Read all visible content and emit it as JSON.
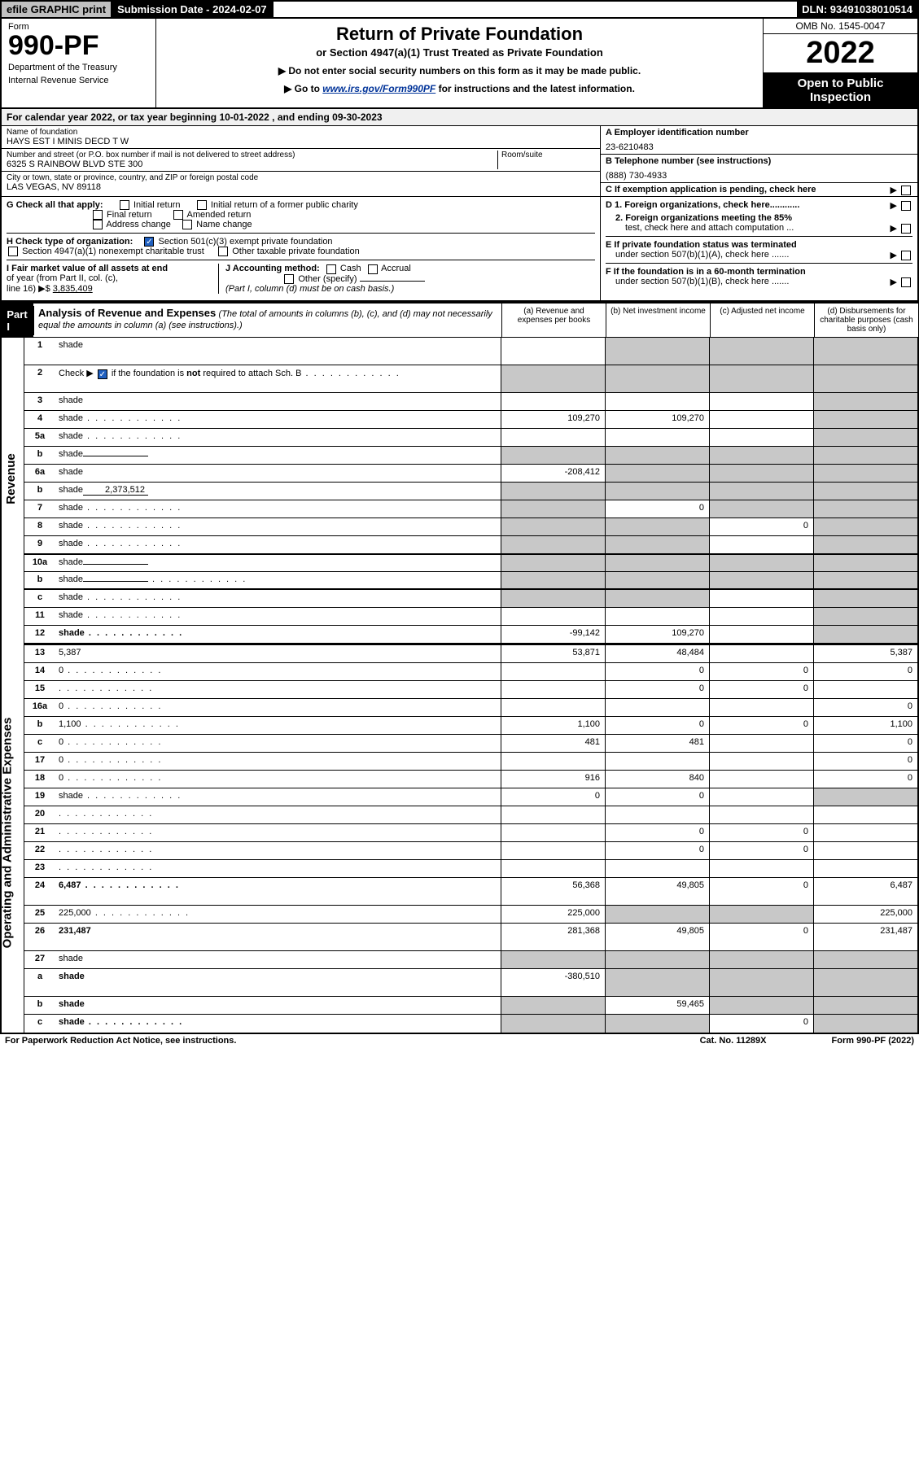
{
  "topbar": {
    "efile": "efile GRAPHIC print",
    "submission": "Submission Date - 2024-02-07",
    "dln": "DLN: 93491038010514"
  },
  "header": {
    "form_label": "Form",
    "form_number": "990-PF",
    "dept1": "Department of the Treasury",
    "dept2": "Internal Revenue Service",
    "title": "Return of Private Foundation",
    "subtitle": "or Section 4947(a)(1) Trust Treated as Private Foundation",
    "note1": "▶ Do not enter social security numbers on this form as it may be made public.",
    "note2_pre": "▶ Go to ",
    "note2_link": "www.irs.gov/Form990PF",
    "note2_post": " for instructions and the latest information.",
    "omb": "OMB No. 1545-0047",
    "year": "2022",
    "open_pub1": "Open to Public",
    "open_pub2": "Inspection"
  },
  "cal_year": "For calendar year 2022, or tax year beginning 10-01-2022                          , and ending 09-30-2023",
  "info": {
    "name_lbl": "Name of foundation",
    "name_val": "HAYS EST I MINIS DECD T W",
    "addr_lbl": "Number and street (or P.O. box number if mail is not delivered to street address)",
    "addr_val": "6325 S RAINBOW BLVD STE 300",
    "room_lbl": "Room/suite",
    "city_lbl": "City or town, state or province, country, and ZIP or foreign postal code",
    "city_val": "LAS VEGAS, NV  89118",
    "ein_lbl": "A Employer identification number",
    "ein_val": "23-6210483",
    "phone_lbl": "B Telephone number (see instructions)",
    "phone_val": "(888) 730-4933",
    "c_lbl": "C If exemption application is pending, check here",
    "d1": "D 1. Foreign organizations, check here............",
    "d2a": "2. Foreign organizations meeting the 85%",
    "d2b": "test, check here and attach computation ...",
    "e1": "E If private foundation status was terminated",
    "e2": "under section 507(b)(1)(A), check here .......",
    "f1": "F  If the foundation is in a 60-month termination",
    "f2": "under section 507(b)(1)(B), check here .......",
    "g_lbl": "G Check all that apply:",
    "g_initial": "Initial return",
    "g_initial_fp": "Initial return of a former public charity",
    "g_final": "Final return",
    "g_amended": "Amended return",
    "g_address": "Address change",
    "g_name": "Name change",
    "h_lbl": "H Check type of organization:",
    "h_501": "Section 501(c)(3) exempt private foundation",
    "h_4947": "Section 4947(a)(1) nonexempt charitable trust",
    "h_other": "Other taxable private foundation",
    "i_lbl1": "I Fair market value of all assets at end",
    "i_lbl2": "of year (from Part II, col. (c),",
    "i_lbl3": "line 16) ▶$",
    "i_val": "3,835,409",
    "j_lbl": "J Accounting method:",
    "j_cash": "Cash",
    "j_accrual": "Accrual",
    "j_other": "Other (specify)",
    "j_note": "(Part I, column (d) must be on cash basis.)"
  },
  "part1": {
    "label": "Part I",
    "title": "Analysis of Revenue and Expenses",
    "title_note": " (The total of amounts in columns (b), (c), and (d) may not necessarily equal the amounts in column (a) (see instructions).)",
    "col_a": "(a)   Revenue and expenses per books",
    "col_b": "(b)   Net investment income",
    "col_c": "(c)   Adjusted net income",
    "col_d": "(d)   Disbursements for charitable purposes (cash basis only)"
  },
  "side_labels": {
    "revenue": "Revenue",
    "expenses": "Operating and Administrative Expenses"
  },
  "rows": [
    {
      "n": "1",
      "d": "shade",
      "a": "",
      "b": "shade",
      "c": "shade",
      "tall": true
    },
    {
      "n": "2",
      "d_html": "Check ▶ <span class='chk on'></span> if the foundation is <b>not</b> required to attach Sch. B",
      "a": "shade",
      "b": "shade",
      "c": "shade",
      "d": "shade",
      "tall": true,
      "dots": true
    },
    {
      "n": "3",
      "d": "shade",
      "a": "",
      "b": "",
      "c": ""
    },
    {
      "n": "4",
      "d": "shade",
      "a": "109,270",
      "b": "109,270",
      "c": "",
      "dots": true
    },
    {
      "n": "5a",
      "d": "shade",
      "a": "",
      "b": "",
      "c": "",
      "dots": true
    },
    {
      "n": "b",
      "d": "shade",
      "a": "shade",
      "b": "shade",
      "c": "shade",
      "inline": ""
    },
    {
      "n": "6a",
      "d": "shade",
      "a": "-208,412",
      "b": "shade",
      "c": "shade"
    },
    {
      "n": "b",
      "d": "shade",
      "a": "shade",
      "b": "shade",
      "c": "shade",
      "inline": "2,373,512"
    },
    {
      "n": "7",
      "d": "shade",
      "a": "shade",
      "b": "0",
      "c": "shade",
      "dots": true
    },
    {
      "n": "8",
      "d": "shade",
      "a": "shade",
      "b": "shade",
      "c": "0",
      "dots": true
    },
    {
      "n": "9",
      "d": "shade",
      "a": "shade",
      "b": "shade",
      "c": "",
      "dots": true
    },
    {
      "n": "10a",
      "d": "shade",
      "a": "shade",
      "b": "shade",
      "c": "shade",
      "inline": ""
    },
    {
      "n": "b",
      "d": "shade",
      "a": "shade",
      "b": "shade",
      "c": "shade",
      "inline": "",
      "dots": true
    },
    {
      "n": "c",
      "d": "shade",
      "a": "shade",
      "b": "shade",
      "c": "",
      "dots": true
    },
    {
      "n": "11",
      "d": "shade",
      "a": "",
      "b": "",
      "c": "",
      "dots": true
    },
    {
      "n": "12",
      "d": "shade",
      "a": "-99,142",
      "b": "109,270",
      "c": "",
      "bold": true,
      "dots": true
    },
    {
      "n": "13",
      "d": "5,387",
      "a": "53,871",
      "b": "48,484",
      "c": ""
    },
    {
      "n": "14",
      "d": "0",
      "a": "",
      "b": "0",
      "c": "0",
      "dots": true
    },
    {
      "n": "15",
      "d": "",
      "a": "",
      "b": "0",
      "c": "0",
      "dots": true
    },
    {
      "n": "16a",
      "d": "0",
      "a": "",
      "b": "",
      "c": "",
      "dots": true
    },
    {
      "n": "b",
      "d": "1,100",
      "a": "1,100",
      "b": "0",
      "c": "0",
      "dots": true
    },
    {
      "n": "c",
      "d": "0",
      "a": "481",
      "b": "481",
      "c": "",
      "dots": true
    },
    {
      "n": "17",
      "d": "0",
      "a": "",
      "b": "",
      "c": "",
      "dots": true
    },
    {
      "n": "18",
      "d": "0",
      "a": "916",
      "b": "840",
      "c": "",
      "dots": true
    },
    {
      "n": "19",
      "d": "shade",
      "a": "0",
      "b": "0",
      "c": "",
      "dots": true
    },
    {
      "n": "20",
      "d": "",
      "a": "",
      "b": "",
      "c": "",
      "dots": true
    },
    {
      "n": "21",
      "d": "",
      "a": "",
      "b": "0",
      "c": "0",
      "dots": true
    },
    {
      "n": "22",
      "d": "",
      "a": "",
      "b": "0",
      "c": "0",
      "dots": true
    },
    {
      "n": "23",
      "d": "",
      "a": "",
      "b": "",
      "c": "",
      "dots": true
    },
    {
      "n": "24",
      "d": "6,487",
      "a": "56,368",
      "b": "49,805",
      "c": "0",
      "bold": true,
      "tall": true,
      "dots": true
    },
    {
      "n": "25",
      "d": "225,000",
      "a": "225,000",
      "b": "shade",
      "c": "shade",
      "dots": true
    },
    {
      "n": "26",
      "d": "231,487",
      "a": "281,368",
      "b": "49,805",
      "c": "0",
      "bold": true,
      "tall": true
    },
    {
      "n": "27",
      "d": "shade",
      "a": "shade",
      "b": "shade",
      "c": "shade"
    },
    {
      "n": "a",
      "d": "shade",
      "a": "-380,510",
      "b": "shade",
      "c": "shade",
      "bold": true,
      "tall": true
    },
    {
      "n": "b",
      "d": "shade",
      "a": "shade",
      "b": "59,465",
      "c": "shade",
      "bold": true
    },
    {
      "n": "c",
      "d": "shade",
      "a": "shade",
      "b": "shade",
      "c": "0",
      "bold": true,
      "dots": true
    }
  ],
  "footer": {
    "left": "For Paperwork Reduction Act Notice, see instructions.",
    "mid": "Cat. No. 11289X",
    "right": "Form 990-PF (2022)"
  }
}
